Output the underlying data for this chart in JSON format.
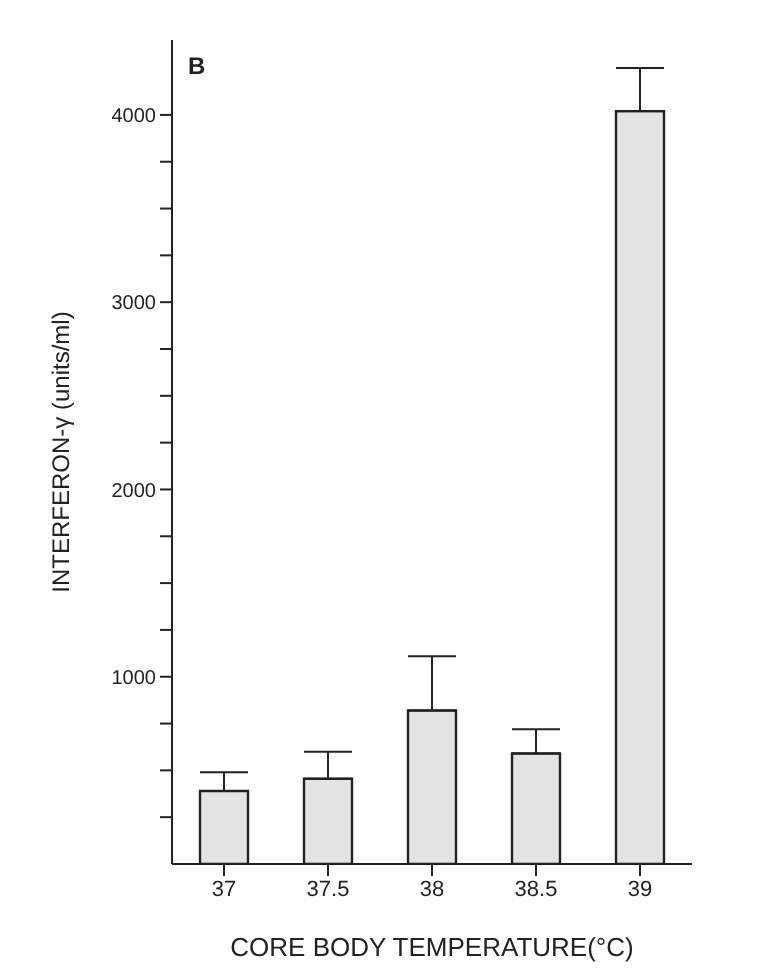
{
  "chart_data": {
    "type": "bar",
    "xlabel": "CORE BODY TEMPERATURE(°C)",
    "ylabel": "INTERFERON-γ (units/ml)",
    "annotations": [
      "B"
    ],
    "categories": [
      "37",
      "37.5",
      "38",
      "38.5",
      "39"
    ],
    "values": [
      390,
      455,
      820,
      590,
      4020
    ],
    "errors": [
      [
        390,
        490
      ],
      [
        455,
        600
      ],
      [
        820,
        1110
      ],
      [
        590,
        720
      ],
      [
        4020,
        4250
      ]
    ],
    "color": "#e4e4e4",
    "ylim": [
      0,
      4400
    ],
    "yticks": [
      {
        "value": 250,
        "label": null
      },
      {
        "value": 500,
        "label": null
      },
      {
        "value": 750,
        "label": null
      },
      1000,
      {
        "value": 1250,
        "label": null
      },
      {
        "value": 1500,
        "label": null
      },
      {
        "value": 1750,
        "label": null
      },
      2000,
      {
        "value": 2250,
        "label": null
      },
      {
        "value": 2500,
        "label": null
      },
      {
        "value": 2750,
        "label": null
      },
      3000,
      {
        "value": 3250,
        "label": null
      },
      {
        "value": 3500,
        "label": null
      },
      {
        "value": 3750,
        "label": null
      },
      4000
    ],
    "grid": false,
    "legend": false
  }
}
